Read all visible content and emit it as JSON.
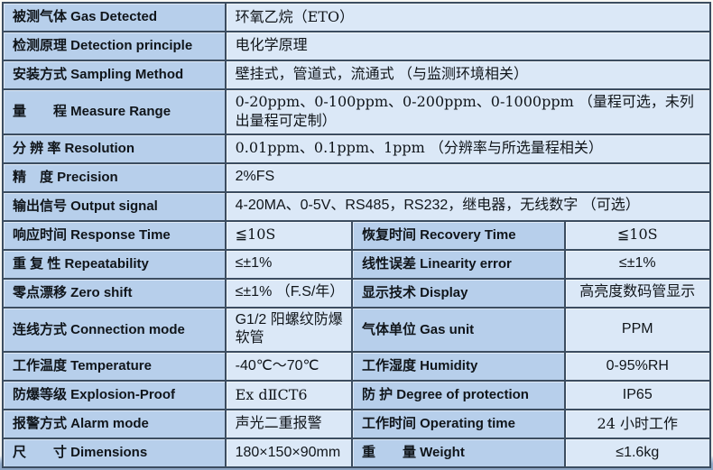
{
  "colors": {
    "label_bg": "#b7cfeb",
    "value_bg": "#dbe8f7",
    "border": "#3c4d60",
    "border_outer": "#23405e",
    "text": "#10151a",
    "page_bottom_strip": "#8ba4c3"
  },
  "table": {
    "rows": [
      {
        "cells": [
          {
            "kind": "label",
            "span": 1,
            "text": "被测气体 Gas Detected"
          },
          {
            "kind": "value",
            "span": 3,
            "text": "环氧乙烷（ETO）"
          }
        ]
      },
      {
        "cells": [
          {
            "kind": "label",
            "span": 1,
            "text": "检测原理 Detection principle"
          },
          {
            "kind": "value",
            "span": 3,
            "text": "电化学原理"
          }
        ]
      },
      {
        "cells": [
          {
            "kind": "label",
            "span": 1,
            "text": "安装方式 Sampling Method"
          },
          {
            "kind": "value",
            "span": 3,
            "text": "壁挂式，管道式，流通式 （与监测环境相关）"
          }
        ]
      },
      {
        "cells": [
          {
            "kind": "label",
            "span": 1,
            "text": "量　　程 Measure Range"
          },
          {
            "kind": "value",
            "span": 3,
            "text": "0-20ppm、0-100ppm、0-200ppm、0-1000ppm （量程可选，未列出量程可定制）"
          }
        ]
      },
      {
        "cells": [
          {
            "kind": "label",
            "span": 1,
            "text": "分 辨 率 Resolution"
          },
          {
            "kind": "value",
            "span": 3,
            "text": "0.01ppm、0.1ppm、1ppm （分辨率与所选量程相关）"
          }
        ]
      },
      {
        "cells": [
          {
            "kind": "label",
            "span": 1,
            "text": "精　度 Precision"
          },
          {
            "kind": "value",
            "span": 3,
            "text": "2%FS"
          }
        ]
      },
      {
        "cells": [
          {
            "kind": "label",
            "span": 1,
            "text": "输出信号 Output signal"
          },
          {
            "kind": "value",
            "span": 3,
            "text": "4-20MA、0-5V、RS485，RS232，继电器，无线数字 （可选）"
          }
        ]
      },
      {
        "cells": [
          {
            "kind": "label",
            "span": 1,
            "text": "响应时间 Response Time"
          },
          {
            "kind": "value",
            "span": 1,
            "text": "≦10S"
          },
          {
            "kind": "label",
            "span": 1,
            "text": "恢复时间 Recovery Time"
          },
          {
            "kind": "value",
            "span": 1,
            "text": "≦10S"
          }
        ]
      },
      {
        "cells": [
          {
            "kind": "label",
            "span": 1,
            "text": "重 复 性 Repeatability"
          },
          {
            "kind": "value",
            "span": 1,
            "text": "≤±1%"
          },
          {
            "kind": "label",
            "span": 1,
            "text": "线性误差 Linearity error"
          },
          {
            "kind": "value",
            "span": 1,
            "text": "≤±1%"
          }
        ]
      },
      {
        "cells": [
          {
            "kind": "label",
            "span": 1,
            "text": "零点漂移 Zero shift"
          },
          {
            "kind": "value",
            "span": 1,
            "text": "≤±1% （F.S/年）"
          },
          {
            "kind": "label",
            "span": 1,
            "text": "显示技术 Display"
          },
          {
            "kind": "value",
            "span": 1,
            "text": "高亮度数码管显示"
          }
        ]
      },
      {
        "cells": [
          {
            "kind": "label",
            "span": 1,
            "text": "连线方式 Connection mode"
          },
          {
            "kind": "value",
            "span": 1,
            "text": "G1/2 阳螺纹防爆软管"
          },
          {
            "kind": "label",
            "span": 1,
            "text": "气体单位 Gas unit"
          },
          {
            "kind": "value",
            "span": 1,
            "text": "PPM"
          }
        ]
      },
      {
        "cells": [
          {
            "kind": "label",
            "span": 1,
            "text": "工作温度 Temperature"
          },
          {
            "kind": "value",
            "span": 1,
            "text": "-40℃～70℃"
          },
          {
            "kind": "label",
            "span": 1,
            "text": "工作湿度 Humidity"
          },
          {
            "kind": "value",
            "span": 1,
            "text": "0-95%RH"
          }
        ]
      },
      {
        "cells": [
          {
            "kind": "label",
            "span": 1,
            "text": "防爆等级 Explosion-Proof"
          },
          {
            "kind": "value",
            "span": 1,
            "text": "Ex dⅡCT6"
          },
          {
            "kind": "label",
            "span": 1,
            "text": "防 护 Degree of protection"
          },
          {
            "kind": "value",
            "span": 1,
            "text": "IP65"
          }
        ]
      },
      {
        "cells": [
          {
            "kind": "label",
            "span": 1,
            "text": "报警方式 Alarm mode"
          },
          {
            "kind": "value",
            "span": 1,
            "text": "声光二重报警"
          },
          {
            "kind": "label",
            "span": 1,
            "text": "工作时间 Operating time"
          },
          {
            "kind": "value",
            "span": 1,
            "text": "24 小时工作"
          }
        ]
      },
      {
        "cells": [
          {
            "kind": "label",
            "span": 1,
            "text": "尺　　寸 Dimensions"
          },
          {
            "kind": "value",
            "span": 1,
            "text": "180×150×90mm"
          },
          {
            "kind": "label",
            "span": 1,
            "text": "重　　量 Weight"
          },
          {
            "kind": "value",
            "span": 1,
            "text": "≤1.6kg"
          }
        ]
      }
    ]
  }
}
